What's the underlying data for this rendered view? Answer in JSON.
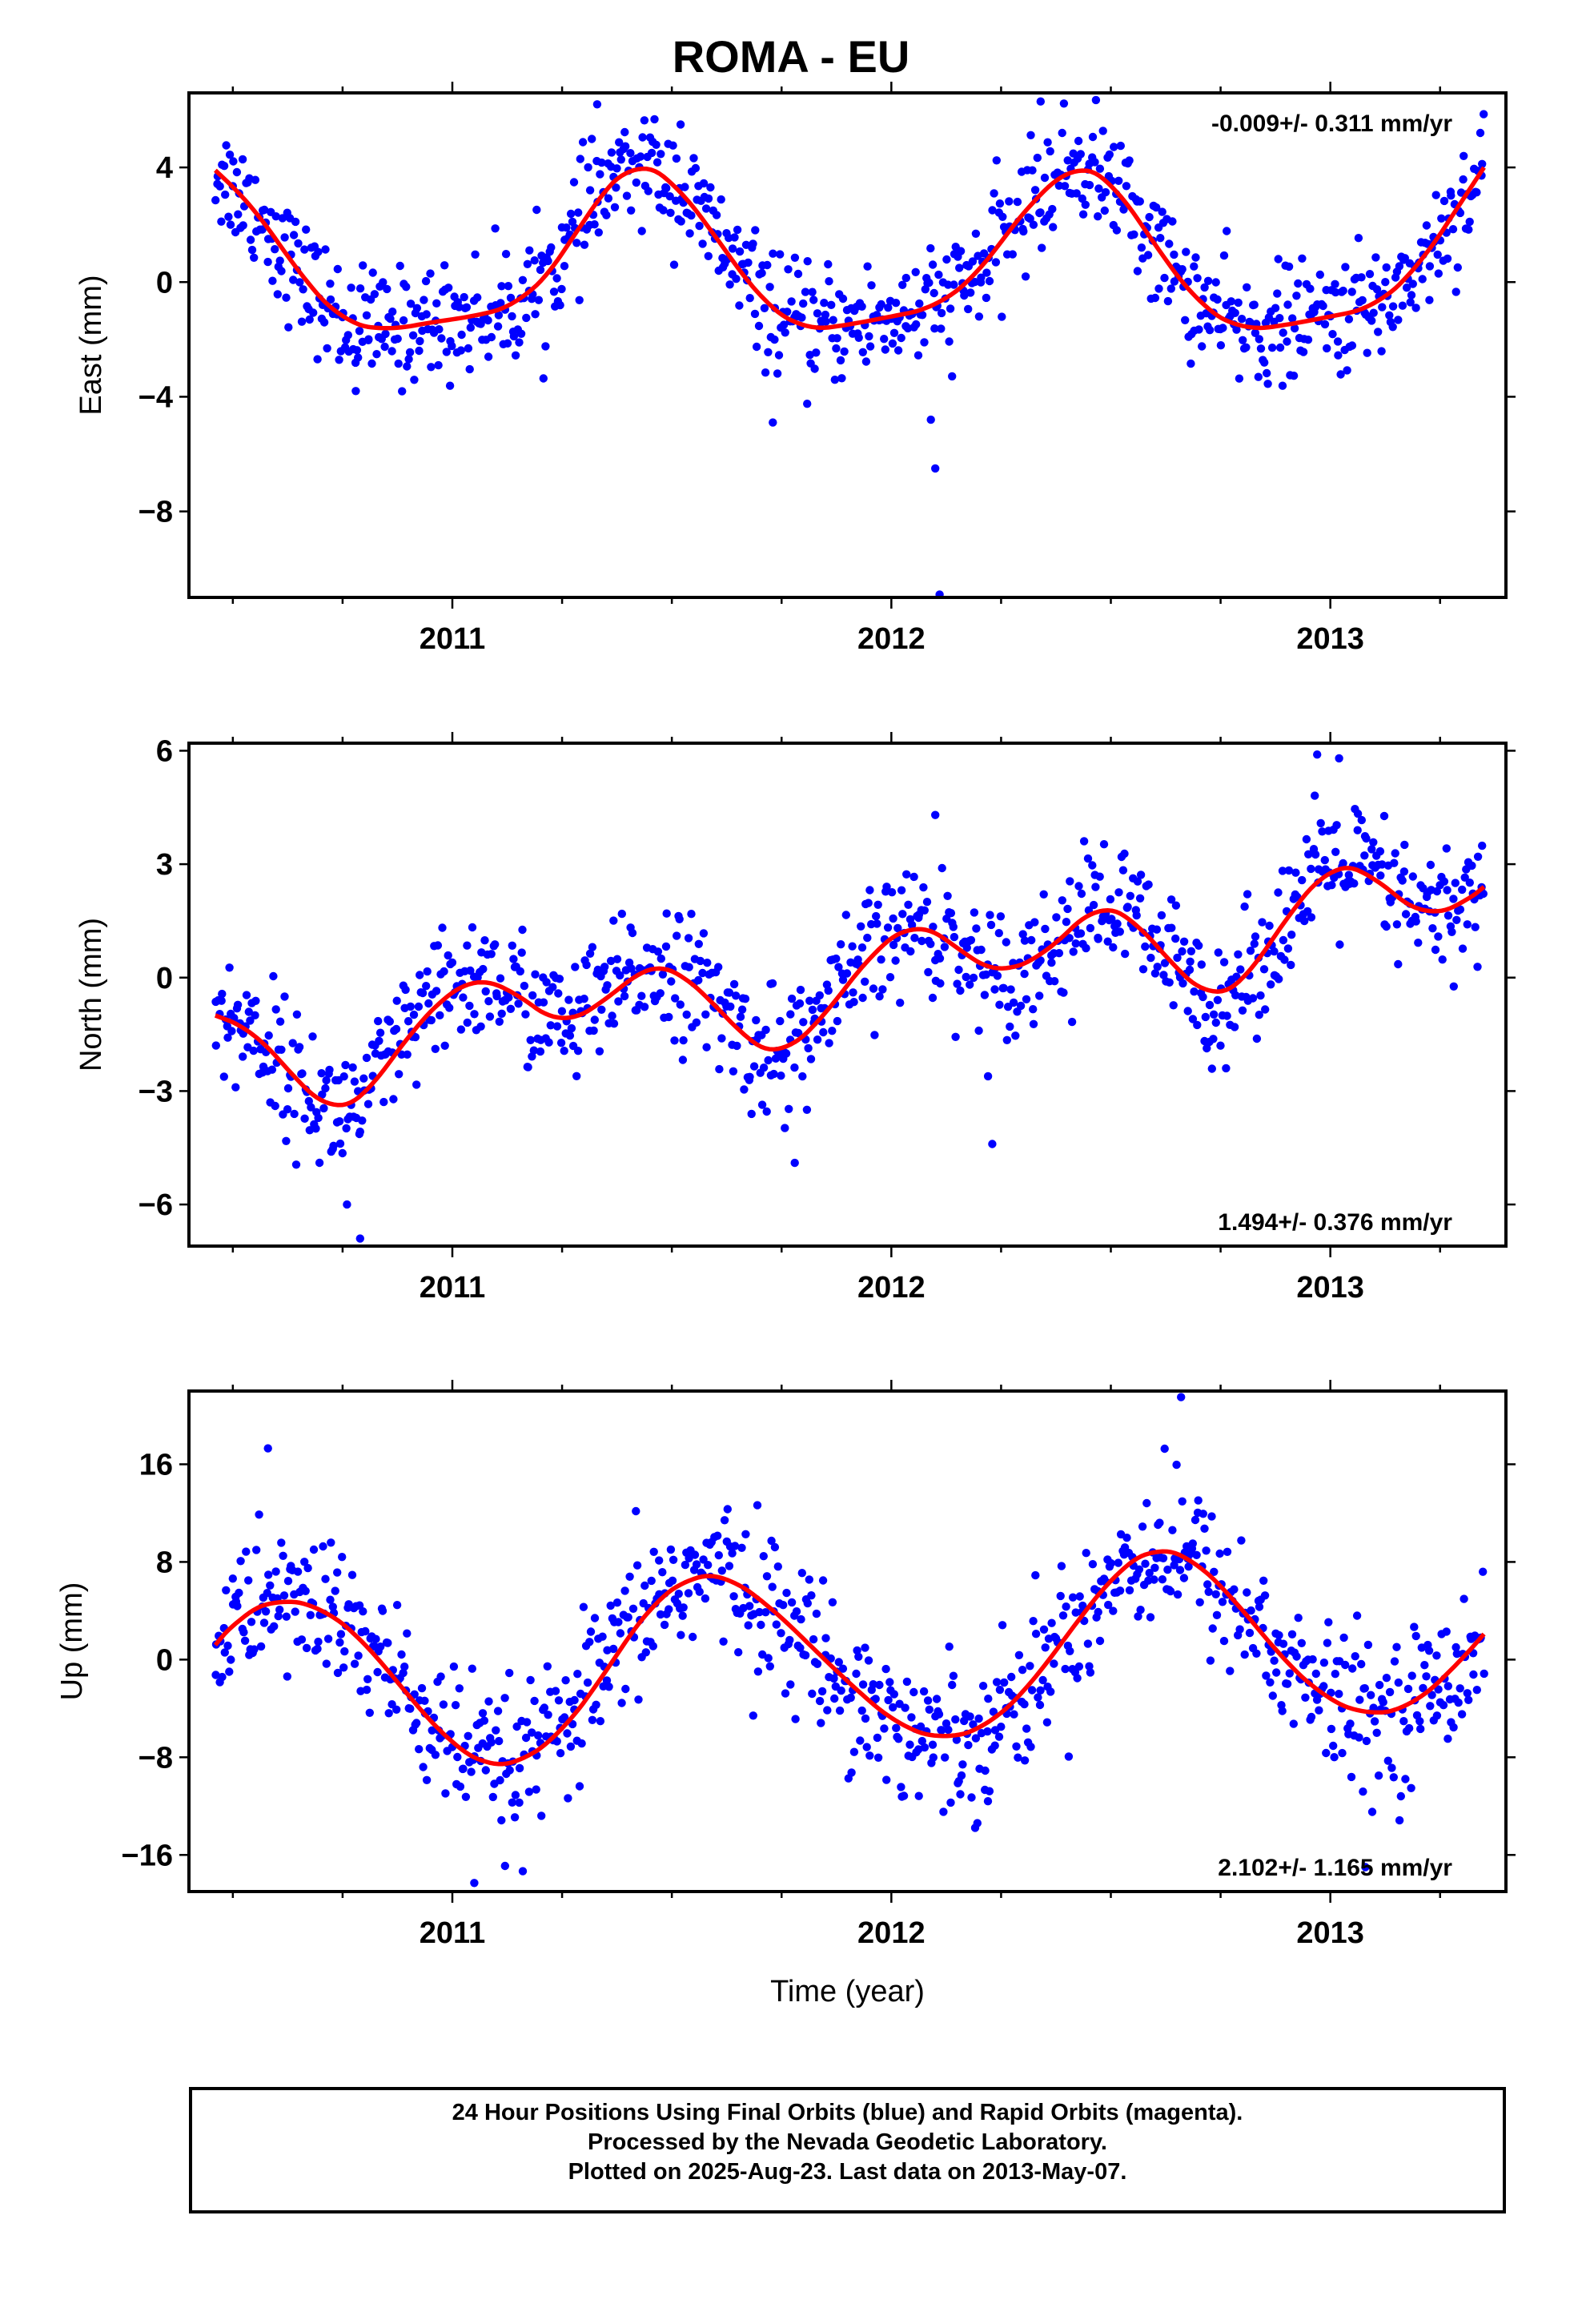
{
  "title": "ROMA - EU",
  "colors": {
    "points": "#0000ff",
    "fit": "#ff0000"
  },
  "footer": {
    "line1": "24 Hour Positions Using Final Orbits (blue) and Rapid Orbits (magenta).",
    "line2": "Processed by the Nevada Geodetic Laboratory.",
    "line3": "Plotted on 2025-Aug-23. Last data on 2013-May-07."
  },
  "chart_data": [
    {
      "type": "scatter",
      "ylabel": "East (mm)",
      "xlabel": "",
      "xlim": [
        2010.4,
        2013.4
      ],
      "ylim": [
        -11,
        6.6
      ],
      "x_ticks": [
        "2011",
        "2012",
        "2013"
      ],
      "y_ticks": [
        4,
        0,
        -4,
        -8
      ],
      "rate_label": "-0.009+/- 0.311 mm/yr",
      "rate_position": "top-right",
      "fit_curve": [
        [
          2010.46,
          3.9
        ],
        [
          2010.55,
          2.6
        ],
        [
          2010.65,
          0.3
        ],
        [
          2010.75,
          -1.4
        ],
        [
          2010.85,
          -1.7
        ],
        [
          2010.95,
          -1.4
        ],
        [
          2011.05,
          -1.2
        ],
        [
          2011.15,
          -0.8
        ],
        [
          2011.25,
          0.8
        ],
        [
          2011.32,
          2.8
        ],
        [
          2011.42,
          4.3
        ],
        [
          2011.5,
          3.6
        ],
        [
          2011.6,
          1.6
        ],
        [
          2011.7,
          -0.6
        ],
        [
          2011.8,
          -1.7
        ],
        [
          2011.9,
          -1.5
        ],
        [
          2012.0,
          -1.2
        ],
        [
          2012.1,
          -0.9
        ],
        [
          2012.2,
          0.3
        ],
        [
          2012.3,
          2.5
        ],
        [
          2012.42,
          4.2
        ],
        [
          2012.5,
          3.6
        ],
        [
          2012.6,
          1.3
        ],
        [
          2012.7,
          -0.8
        ],
        [
          2012.8,
          -1.7
        ],
        [
          2012.9,
          -1.5
        ],
        [
          2013.0,
          -1.2
        ],
        [
          2013.1,
          -0.9
        ],
        [
          2013.2,
          0.5
        ],
        [
          2013.35,
          4.0
        ]
      ],
      "outliers": [
        [
          2012.09,
          -4.8
        ],
        [
          2012.1,
          -6.5
        ],
        [
          2012.11,
          -10.9
        ],
        [
          2011.73,
          -4.9
        ],
        [
          2010.78,
          -3.8
        ],
        [
          2011.52,
          5.5
        ],
        [
          2012.34,
          6.3
        ],
        [
          2011.33,
          6.2
        ]
      ],
      "noise": 1.0
    },
    {
      "type": "scatter",
      "ylabel": "North (mm)",
      "xlabel": "",
      "xlim": [
        2010.4,
        2013.4
      ],
      "ylim": [
        -7.1,
        6.2
      ],
      "x_ticks": [
        "2011",
        "2012",
        "2013"
      ],
      "y_ticks": [
        6,
        3,
        0,
        -3,
        -6
      ],
      "rate_label": "1.494+/- 0.376 mm/yr",
      "rate_position": "bottom-right",
      "fit_curve": [
        [
          2010.46,
          -1.0
        ],
        [
          2010.55,
          -1.4
        ],
        [
          2010.65,
          -2.8
        ],
        [
          2010.73,
          -3.6
        ],
        [
          2010.8,
          -3.2
        ],
        [
          2010.9,
          -1.5
        ],
        [
          2011.0,
          -0.3
        ],
        [
          2011.05,
          0.0
        ],
        [
          2011.12,
          -0.2
        ],
        [
          2011.2,
          -0.9
        ],
        [
          2011.25,
          -1.3
        ],
        [
          2011.35,
          -0.6
        ],
        [
          2011.45,
          0.4
        ],
        [
          2011.5,
          0.3
        ],
        [
          2011.6,
          -0.7
        ],
        [
          2011.68,
          -1.8
        ],
        [
          2011.75,
          -2.1
        ],
        [
          2011.85,
          -1.0
        ],
        [
          2011.95,
          0.6
        ],
        [
          2012.05,
          1.5
        ],
        [
          2012.12,
          1.1
        ],
        [
          2012.2,
          0.3
        ],
        [
          2012.25,
          0.1
        ],
        [
          2012.35,
          0.6
        ],
        [
          2012.47,
          2.0
        ],
        [
          2012.55,
          1.6
        ],
        [
          2012.65,
          0.2
        ],
        [
          2012.73,
          -0.6
        ],
        [
          2012.8,
          -0.2
        ],
        [
          2012.9,
          1.6
        ],
        [
          2013.0,
          3.0
        ],
        [
          2013.08,
          2.9
        ],
        [
          2013.15,
          2.1
        ],
        [
          2013.22,
          1.6
        ],
        [
          2013.3,
          1.9
        ],
        [
          2013.35,
          2.4
        ]
      ],
      "outliers": [
        [
          2010.79,
          -6.9
        ],
        [
          2010.76,
          -6.0
        ],
        [
          2012.1,
          4.3
        ],
        [
          2012.23,
          -4.4
        ],
        [
          2011.78,
          -4.9
        ],
        [
          2013.02,
          5.8
        ],
        [
          2012.97,
          5.9
        ]
      ],
      "noise": 0.85
    },
    {
      "type": "scatter",
      "ylabel": "Up (mm)",
      "xlabel": "Time (year)",
      "xlim": [
        2010.4,
        2013.4
      ],
      "ylim": [
        -19,
        22
      ],
      "x_ticks": [
        "2011",
        "2012",
        "2013"
      ],
      "y_ticks": [
        16,
        8,
        0,
        -8,
        -16
      ],
      "rate_label": "2.102+/- 1.165 mm/yr",
      "rate_position": "bottom-right",
      "fit_curve": [
        [
          2010.46,
          1.2
        ],
        [
          2010.52,
          3.8
        ],
        [
          2010.6,
          5.0
        ],
        [
          2010.7,
          4.4
        ],
        [
          2010.8,
          1.5
        ],
        [
          2010.9,
          -3.0
        ],
        [
          2011.0,
          -7.0
        ],
        [
          2011.08,
          -8.8
        ],
        [
          2011.15,
          -8.6
        ],
        [
          2011.25,
          -6.0
        ],
        [
          2011.35,
          -1.0
        ],
        [
          2011.45,
          4.5
        ],
        [
          2011.55,
          7.0
        ],
        [
          2011.62,
          7.0
        ],
        [
          2011.72,
          4.5
        ],
        [
          2011.82,
          1.0
        ],
        [
          2011.92,
          -2.5
        ],
        [
          2012.02,
          -5.5
        ],
        [
          2012.12,
          -6.6
        ],
        [
          2012.22,
          -5.5
        ],
        [
          2012.32,
          -2.0
        ],
        [
          2012.42,
          3.0
        ],
        [
          2012.52,
          7.5
        ],
        [
          2012.6,
          9.3
        ],
        [
          2012.68,
          8.5
        ],
        [
          2012.78,
          5.0
        ],
        [
          2012.88,
          0.5
        ],
        [
          2012.98,
          -3.0
        ],
        [
          2013.08,
          -4.6
        ],
        [
          2013.18,
          -4.0
        ],
        [
          2013.28,
          -0.8
        ],
        [
          2013.35,
          2.1
        ]
      ],
      "outliers": [
        [
          2012.66,
          21.5
        ],
        [
          2010.58,
          17.3
        ],
        [
          2011.05,
          -18.3
        ],
        [
          2013.08,
          -17.0
        ],
        [
          2011.12,
          -16.9
        ],
        [
          2012.22,
          -11.6
        ]
      ],
      "noise": 3.0
    }
  ]
}
